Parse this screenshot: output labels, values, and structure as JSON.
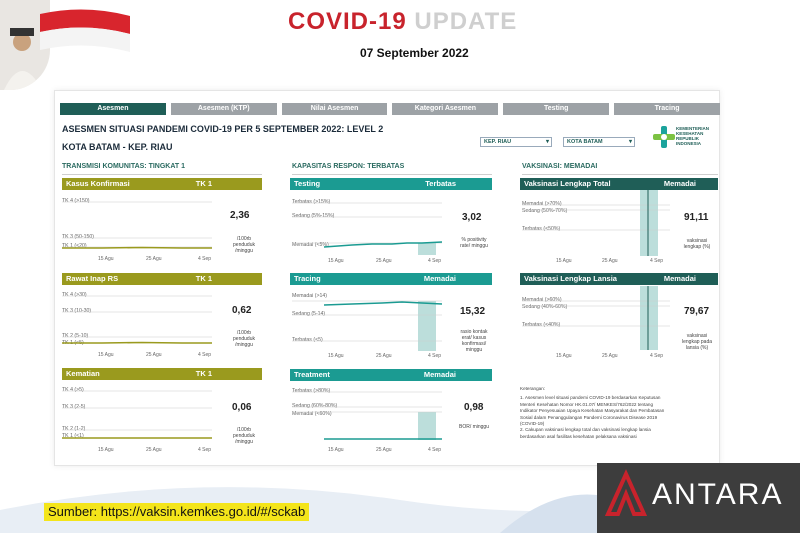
{
  "header": {
    "title_part1": "COVID-19",
    "title_part2": "UPDATE",
    "date": "07 September  2022"
  },
  "tabs": [
    {
      "label": "Asesmen",
      "active": true
    },
    {
      "label": "Asesmen (KTP)",
      "active": false
    },
    {
      "label": "Nilai Asesmen",
      "active": false
    },
    {
      "label": "Kategori Asesmen",
      "active": false
    },
    {
      "label": "Testing",
      "active": false
    },
    {
      "label": "Tracing",
      "active": false
    }
  ],
  "dashboard": {
    "title": "ASESMEN SITUASI PANDEMI COVID-19 PER 5 SEPTEMBER 2022: LEVEL 2",
    "location": "KOTA BATAM - KEP. RIAU",
    "province_select": "KEP. RIAU",
    "city_select": "KOTA BATAM",
    "logo_text": [
      "KEMENTERIAN",
      "KESEHATAN",
      "REPUBLIK",
      "INDONESIA"
    ]
  },
  "sections": {
    "transmisi": "TRANSMISI KOMUNITAS: TINGKAT 1",
    "kapasitas": "KAPASITAS RESPON: TERBATAS",
    "vaksinasi": "VAKSINASI: MEMADAI"
  },
  "x_ticks": [
    "15 Agu",
    "25 Agu",
    "4 Sep"
  ],
  "cards": {
    "kasus": {
      "title": "Kasus Konfirmasi",
      "level": "TK  1",
      "value": "2,36",
      "unit": [
        "/100rb",
        "penduduk",
        "/minggu"
      ],
      "labels": [
        "TK 4 (>150)",
        "TK 3 (50-150)",
        "TK 1 (<20)"
      ]
    },
    "rawat": {
      "title": "Rawat Inap RS",
      "level": "TK  1",
      "value": "0,62",
      "unit": [
        "/100rb",
        "penduduk",
        "/minggu"
      ],
      "labels": [
        "TK 4 (>30)",
        "TK 3 (10-30)",
        "TK 2 (5-10)",
        "TK 1 (<5)"
      ]
    },
    "kematian": {
      "title": "Kematian",
      "level": "TK  1",
      "value": "0,06",
      "unit": [
        "/100rb",
        "penduduk",
        "/minggu"
      ],
      "labels": [
        "TK 4 (>5)",
        "TK 3 (2-5)",
        "TK 2 (1-2)",
        "TK 1 (<1)"
      ]
    },
    "testing": {
      "title": "Testing",
      "level": "Terbatas",
      "value": "3,02",
      "unit": [
        "% positivity",
        "rate/ minggu"
      ],
      "labels": [
        "Terbatas (>15%)",
        "Sedang (5%-15%)",
        "Memadai (<5%)"
      ]
    },
    "tracing": {
      "title": "Tracing",
      "level": "Memadai",
      "value": "15,32",
      "unit": [
        "rasio kontak",
        "erat/ kasus",
        "konfirmasi/",
        "minggu"
      ],
      "labels": [
        "Memadai (>14)",
        "Sedang (5-14)",
        "Terbatas (<5)"
      ]
    },
    "treatment": {
      "title": "Treatment",
      "level": "Memadai",
      "value": "0,98",
      "unit": [
        "BOR/ minggu"
      ],
      "labels": [
        "Terbatas (>80%)",
        "Sedang (60%-80%)",
        "Memadai (<60%)"
      ]
    },
    "vaks_total": {
      "title": "Vaksinasi Lengkap Total",
      "level": "Memadai",
      "value": "91,11",
      "unit": [
        "vaksinasi",
        "lengkap (%)"
      ],
      "labels": [
        "Memadai (>70%)",
        "Sedang (50%-70%)",
        "Terbatas (<50%)"
      ]
    },
    "vaks_lansia": {
      "title": "Vaksinasi Lengkap Lansia",
      "level": "Memadai",
      "value": "79,67",
      "unit": [
        "vaksinasi",
        "lengkap pada",
        "lansia (%)"
      ],
      "labels": [
        "Memadai (>60%)",
        "Sedang (40%-60%)",
        "Terbatas (<40%)"
      ]
    }
  },
  "keterangan": {
    "heading": "Keterangan:",
    "lines": [
      "1. Asesmen level situasi pandemi COVID-19 berdasarkan Keputusan",
      "Menteri Kesehatan Nomor HK.01.07/ MENKES/762/2022 tentang",
      "Indikator Penyesuaian Upaya Kesehatan Masyarakat dan Pembatasan",
      "Sosial dalam Penanggulangan Pandemi Coronavirus Disease 2019",
      "(COVID-19)",
      "2. Cakupan vaksinasi lengkap total dan vaksinasi lengkap lansia",
      "berdasarkan asal fasilitas kesehatan pelaksana vaksinasi"
    ]
  },
  "footer": {
    "source": "Sumber: https://vaksin.kemkes.go.id/#/sckab",
    "watermark": "ANTARA"
  },
  "colors": {
    "olive": "#9a9a1e",
    "teal": "#1b9b92",
    "dark_teal": "#1f5e57",
    "red": "#c8232c"
  }
}
